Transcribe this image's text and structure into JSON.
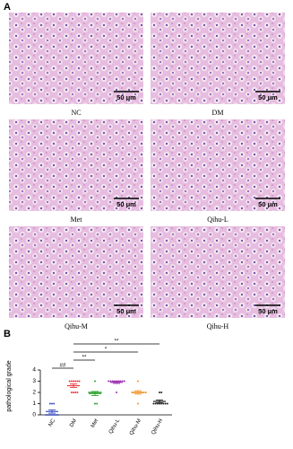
{
  "panel_a": {
    "label": "A",
    "images": [
      {
        "label": "NC",
        "scale": "50 μm"
      },
      {
        "label": "DM",
        "scale": "50 μm"
      },
      {
        "label": "Met",
        "scale": "50 μm"
      },
      {
        "label": "Qihu-L",
        "scale": "50 μm"
      },
      {
        "label": "Qihu-M",
        "scale": "50 μm"
      },
      {
        "label": "Qihu-H",
        "scale": "50 μm"
      }
    ]
  },
  "chart_data": {
    "type": "scatter",
    "panel_label": "B",
    "y_label": "pathological grade",
    "categories": [
      "NC",
      "DM",
      "Met",
      "Qihu-L",
      "Qihu-M",
      "Qihu-H"
    ],
    "colors": [
      "#3b4fc4",
      "#e8383b",
      "#2ca02c",
      "#9b30b0",
      "#f0912a",
      "#222222"
    ],
    "points": [
      [
        1,
        1,
        1,
        0,
        0,
        0,
        0,
        0,
        0,
        0
      ],
      [
        3,
        3,
        3,
        3,
        3,
        3,
        2,
        2,
        2,
        2
      ],
      [
        3,
        2,
        2,
        2,
        2,
        2,
        2,
        2,
        1,
        1
      ],
      [
        3,
        3,
        3,
        3,
        3,
        3,
        3,
        3,
        3,
        2
      ],
      [
        3,
        2,
        2,
        2,
        2,
        2,
        2,
        2,
        2,
        1
      ],
      [
        2,
        2,
        1,
        1,
        1,
        1,
        1,
        1,
        1,
        1
      ]
    ],
    "means": [
      0.3,
      2.6,
      1.9,
      2.9,
      2.0,
      1.2
    ],
    "errors": [
      0.15,
      0.16,
      0.18,
      0.1,
      0.15,
      0.13
    ],
    "ylim": [
      0,
      4
    ],
    "yticks": [
      0,
      1,
      2,
      3,
      4
    ],
    "annotations": [
      {
        "text": "##",
        "between": [
          0,
          1
        ]
      },
      {
        "text": "**",
        "between": [
          1,
          2
        ]
      },
      {
        "text": "*",
        "between": [
          1,
          4
        ]
      },
      {
        "text": "**",
        "between": [
          1,
          5
        ]
      }
    ]
  }
}
